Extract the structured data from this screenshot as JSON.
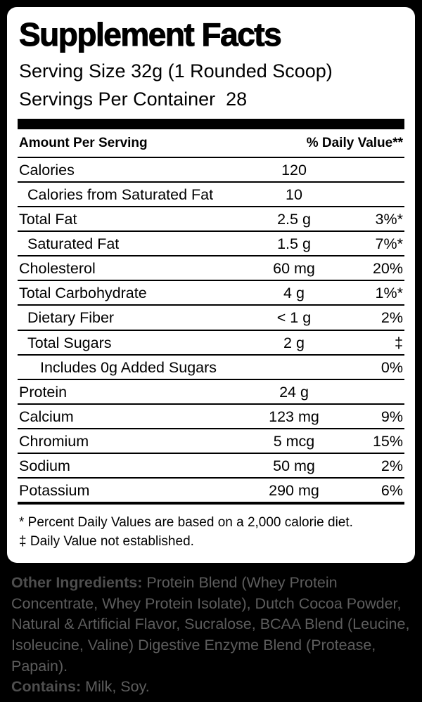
{
  "label": {
    "title": "Supplement Facts",
    "serving_size": "Serving Size 32g (1 Rounded Scoop)",
    "servings_per_container": "Servings Per Container  28",
    "header": {
      "amount": "Amount Per Serving",
      "daily_value": "% Daily Value**"
    },
    "rows": [
      {
        "name": "Calories",
        "amount": "120",
        "dv": ""
      },
      {
        "name": "Calories from Saturated Fat",
        "amount": "10",
        "dv": ""
      },
      {
        "name": "Total Fat",
        "amount": "2.5 g",
        "dv": "3%*"
      },
      {
        "name": "Saturated Fat",
        "amount": "1.5 g",
        "dv": "7%*"
      },
      {
        "name": "Cholesterol",
        "amount": "60 mg",
        "dv": "20%"
      },
      {
        "name": "Total Carbohydrate",
        "amount": "4 g",
        "dv": "1%*"
      },
      {
        "name": "Dietary Fiber",
        "amount": "< 1 g",
        "dv": "2%"
      },
      {
        "name": "Total Sugars",
        "amount": "2 g",
        "dv": "‡"
      },
      {
        "name": "Includes 0g Added Sugars",
        "amount": "",
        "dv": "0%"
      },
      {
        "name": "Protein",
        "amount": "24 g",
        "dv": ""
      },
      {
        "name": "Calcium",
        "amount": "123 mg",
        "dv": "9%"
      },
      {
        "name": "Chromium",
        "amount": "5 mcg",
        "dv": "15%"
      },
      {
        "name": "Sodium",
        "amount": "50 mg",
        "dv": "2%"
      },
      {
        "name": "Potassium",
        "amount": "290 mg",
        "dv": "6%"
      }
    ],
    "footnotes": [
      "* Percent Daily Values are based on a 2,000 calorie diet.",
      "‡ Daily Value not established."
    ],
    "other_ingredients": {
      "label": "Other Ingredients:",
      "text": "Protein Blend (Whey Protein Concentrate, Whey Protein Isolate), Dutch Cocoa Powder, Natural & Artificial Flavor, Sucralose, BCAA Blend (Leucine, Isoleucine, Valine) Digestive Enzyme Blend (Protease, Papain)."
    },
    "contains": {
      "label": "Contains:",
      "text": "Milk, Soy."
    }
  }
}
